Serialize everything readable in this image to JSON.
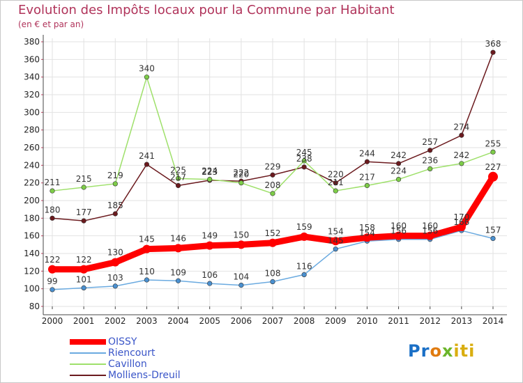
{
  "chart_data": {
    "type": "line",
    "title": "Evolution des Impôts locaux pour la Commune par Habitant",
    "subtitle": "(en € et par an)",
    "xlabel": "",
    "ylabel": "",
    "ylim": [
      80,
      380
    ],
    "yticks": [
      80,
      100,
      120,
      140,
      160,
      180,
      200,
      220,
      240,
      260,
      280,
      300,
      320,
      340,
      360,
      380
    ],
    "x": [
      "2000",
      "2001",
      "2002",
      "2003",
      "2004",
      "2005",
      "2006",
      "2007",
      "2008",
      "2009",
      "2010",
      "2011",
      "2012",
      "2013",
      "2014"
    ],
    "grid": true,
    "legend_position": "bottom-left",
    "series": [
      {
        "name": "Molliens-Dreuil",
        "color": "#6b1a1e",
        "marker": "#6b1a1e",
        "values": [
          180,
          177,
          185,
          241,
          217,
          223,
          222,
          229,
          238,
          220,
          244,
          242,
          257,
          274,
          368
        ],
        "labels": [
          "180",
          "177",
          "185",
          "241",
          "217",
          "223",
          "222",
          "229",
          "238",
          "220",
          "244",
          "242",
          "257",
          "274",
          "368"
        ]
      },
      {
        "name": "Cavillon",
        "color": "#9ee06a",
        "marker": "#7dcc48",
        "values": [
          211,
          215,
          219,
          340,
          225,
          224,
          220,
          208,
          245,
          211,
          217,
          224,
          236,
          242,
          255
        ],
        "labels": [
          "211",
          "215",
          "219",
          "340",
          "225",
          "224",
          "220",
          "208",
          "245",
          "211",
          "217",
          "224",
          "236",
          "242",
          "255"
        ]
      },
      {
        "name": "Riencourt",
        "color": "#6aaae0",
        "marker": "#4a90d0",
        "values": [
          99,
          101,
          103,
          110,
          109,
          106,
          104,
          108,
          116,
          145,
          154,
          156,
          156,
          166,
          157
        ],
        "labels": [
          "99",
          "101",
          "103",
          "110",
          "109",
          "106",
          "104",
          "108",
          "116",
          "145",
          "154",
          "156",
          "156",
          "166",
          "157"
        ]
      },
      {
        "name": "OISSY",
        "color": "#ff0000",
        "marker": "#ff0000",
        "values": [
          122,
          122,
          130,
          145,
          146,
          149,
          150,
          152,
          159,
          154,
          158,
          160,
          160,
          170,
          227
        ],
        "labels": [
          "122",
          "122",
          "130",
          "145",
          "146",
          "149",
          "150",
          "152",
          "159",
          "154",
          "158",
          "160",
          "160",
          "170",
          "227"
        ]
      }
    ],
    "legend": [
      "OISSY",
      "Riencourt",
      "Cavillon",
      "Molliens-Dreuil"
    ]
  },
  "logo": {
    "p1": "Pr",
    "p2": "o",
    "p3": "x",
    "p4": "iti"
  },
  "colors": {
    "title": "#b0335a",
    "legend_text": "#3a55c8",
    "grid": "#e2e2e2"
  }
}
